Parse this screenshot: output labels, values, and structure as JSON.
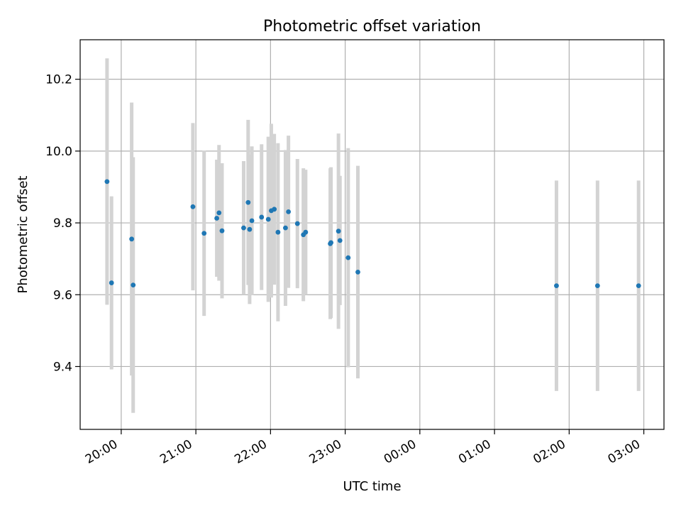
{
  "chart_data": {
    "type": "scatter",
    "title": "Photometric offset variation",
    "xlabel": "UTC time",
    "ylabel": "Photometric offset",
    "grid": true,
    "x_unit": "UTC time (hours; values past 24 are after midnight)",
    "xlim": [
      19.45,
      27.27
    ],
    "ylim": [
      9.225,
      10.31
    ],
    "x_ticks": [
      {
        "value": 20,
        "label": "20:00"
      },
      {
        "value": 21,
        "label": "21:00"
      },
      {
        "value": 22,
        "label": "22:00"
      },
      {
        "value": 23,
        "label": "23:00"
      },
      {
        "value": 24,
        "label": "00:00"
      },
      {
        "value": 25,
        "label": "01:00"
      },
      {
        "value": 26,
        "label": "02:00"
      },
      {
        "value": 27,
        "label": "03:00"
      }
    ],
    "y_ticks": [
      {
        "value": 9.4,
        "label": "9.4"
      },
      {
        "value": 9.6,
        "label": "9.6"
      },
      {
        "value": 9.8,
        "label": "9.8"
      },
      {
        "value": 10.0,
        "label": "10.0"
      },
      {
        "value": 10.2,
        "label": "10.2"
      }
    ],
    "colors": {
      "point": "#1f77b4",
      "errorbar": "#d3d3d3",
      "grid": "#b0b0b0"
    },
    "points": [
      {
        "x": 19.81,
        "y": 9.915,
        "err": 0.343
      },
      {
        "x": 19.87,
        "y": 9.633,
        "err": 0.241
      },
      {
        "x": 20.14,
        "y": 9.755,
        "err": 0.38
      },
      {
        "x": 20.16,
        "y": 9.627,
        "err": 0.356
      },
      {
        "x": 20.96,
        "y": 9.845,
        "err": 0.233
      },
      {
        "x": 21.11,
        "y": 9.771,
        "err": 0.23
      },
      {
        "x": 21.28,
        "y": 9.813,
        "err": 0.163
      },
      {
        "x": 21.31,
        "y": 9.828,
        "err": 0.189
      },
      {
        "x": 21.35,
        "y": 9.778,
        "err": 0.188
      },
      {
        "x": 21.64,
        "y": 9.786,
        "err": 0.186
      },
      {
        "x": 21.7,
        "y": 9.857,
        "err": 0.23
      },
      {
        "x": 21.72,
        "y": 9.782,
        "err": 0.208
      },
      {
        "x": 21.75,
        "y": 9.806,
        "err": 0.207
      },
      {
        "x": 21.88,
        "y": 9.816,
        "err": 0.203
      },
      {
        "x": 21.97,
        "y": 9.81,
        "err": 0.23
      },
      {
        "x": 22.01,
        "y": 9.834,
        "err": 0.242
      },
      {
        "x": 22.05,
        "y": 9.838,
        "err": 0.21
      },
      {
        "x": 22.1,
        "y": 9.774,
        "err": 0.248
      },
      {
        "x": 22.2,
        "y": 9.786,
        "err": 0.217
      },
      {
        "x": 22.24,
        "y": 9.831,
        "err": 0.212
      },
      {
        "x": 22.36,
        "y": 9.798,
        "err": 0.18
      },
      {
        "x": 22.44,
        "y": 9.767,
        "err": 0.185
      },
      {
        "x": 22.47,
        "y": 9.774,
        "err": 0.174
      },
      {
        "x": 22.8,
        "y": 9.742,
        "err": 0.21
      },
      {
        "x": 22.81,
        "y": 9.745,
        "err": 0.21
      },
      {
        "x": 22.91,
        "y": 9.777,
        "err": 0.272
      },
      {
        "x": 22.93,
        "y": 9.751,
        "err": 0.18
      },
      {
        "x": 23.04,
        "y": 9.703,
        "err": 0.305
      },
      {
        "x": 23.17,
        "y": 9.663,
        "err": 0.296
      },
      {
        "x": 25.83,
        "y": 9.625,
        "err": 0.293
      },
      {
        "x": 26.38,
        "y": 9.625,
        "err": 0.293
      },
      {
        "x": 26.93,
        "y": 9.625,
        "err": 0.293
      }
    ]
  }
}
